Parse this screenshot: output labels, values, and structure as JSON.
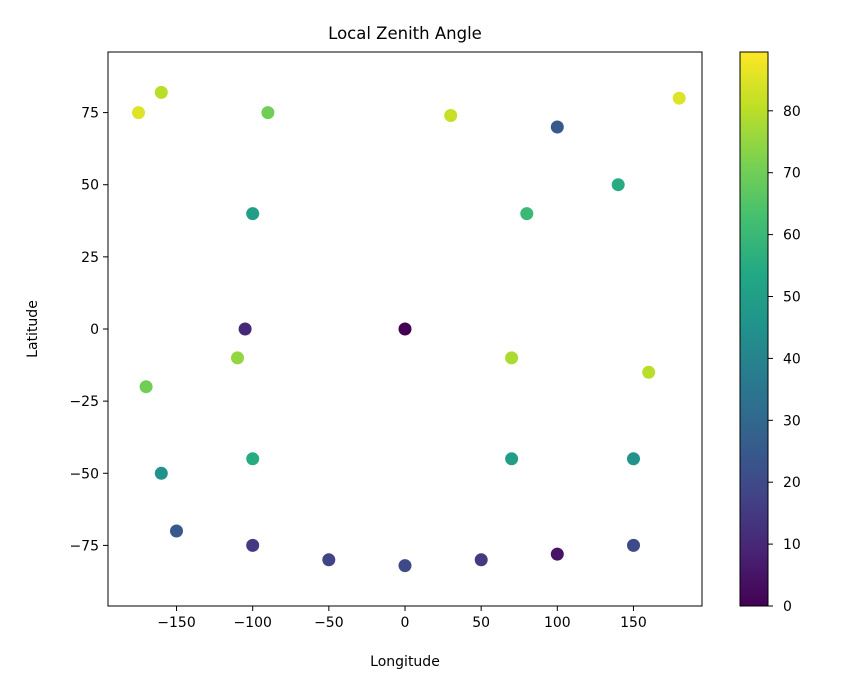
{
  "chart_data": {
    "type": "scatter",
    "title": "Local Zenith Angle",
    "xlabel": "Longitude",
    "ylabel": "Latitude",
    "xlim": [
      -195,
      195
    ],
    "ylim": [
      -96,
      96
    ],
    "xticks": [
      -150,
      -100,
      -50,
      0,
      50,
      100,
      150
    ],
    "yticks": [
      -75,
      -50,
      -25,
      0,
      25,
      50,
      75
    ],
    "grid": false,
    "colormap": "viridis",
    "colorbar": {
      "range": [
        0,
        89.5
      ],
      "ticks": [
        0,
        10,
        20,
        30,
        40,
        50,
        60,
        70,
        80
      ]
    },
    "series": [
      {
        "points": [
          [
            0,
            0,
            0
          ],
          [
            -150,
            -70,
            25
          ],
          [
            -100,
            -75,
            15
          ],
          [
            -50,
            -80,
            18
          ],
          [
            0,
            -82,
            20
          ],
          [
            50,
            -80,
            15
          ],
          [
            100,
            -78,
            5
          ],
          [
            150,
            -75,
            20
          ],
          [
            -160,
            -50,
            45
          ],
          [
            -100,
            -45,
            55
          ],
          [
            70,
            -45,
            50
          ],
          [
            150,
            -45,
            45
          ],
          [
            -170,
            -20,
            70
          ],
          [
            -110,
            -10,
            75
          ],
          [
            70,
            -10,
            78
          ],
          [
            160,
            -15,
            80
          ],
          [
            -105,
            0,
            10
          ],
          [
            -100,
            40,
            50
          ],
          [
            -90,
            75,
            70
          ],
          [
            -160,
            82,
            80
          ],
          [
            100,
            70,
            25
          ],
          [
            80,
            40,
            60
          ],
          [
            140,
            50,
            55
          ],
          [
            -175,
            75,
            85
          ],
          [
            180,
            80,
            85
          ],
          [
            30,
            74,
            82
          ]
        ]
      }
    ]
  }
}
